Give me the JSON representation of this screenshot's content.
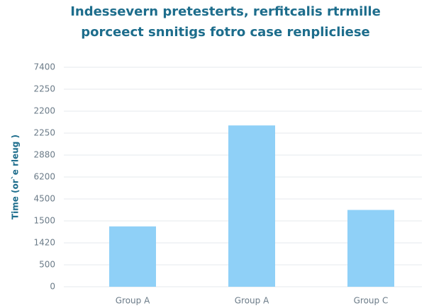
{
  "chart_data": {
    "type": "bar",
    "title": [
      "Indessevern pretesterts, rerfitcalis rtrmille",
      "porceect snnitigs fotro case renplicliese"
    ],
    "y_label": "Time (or`e rleug )",
    "categories": [
      "Group A",
      "Group A",
      "Group C"
    ],
    "values": [
      2.75,
      7.35,
      3.5
    ],
    "color": "#8fd0f7",
    "ylim": [
      0,
      10
    ],
    "yticks": [
      {
        "value": 0,
        "label": "0"
      },
      {
        "value": 1,
        "label": "500"
      },
      {
        "value": 2,
        "label": "1420"
      },
      {
        "value": 3,
        "label": "1500"
      },
      {
        "value": 4,
        "label": "4500"
      },
      {
        "value": 5,
        "label": "6200"
      },
      {
        "value": 6,
        "label": "2880"
      },
      {
        "value": 7,
        "label": "2250"
      },
      {
        "value": 8,
        "label": "2200"
      },
      {
        "value": 9,
        "label": "2250"
      },
      {
        "value": 10,
        "label": "7400"
      }
    ],
    "grid": true
  }
}
